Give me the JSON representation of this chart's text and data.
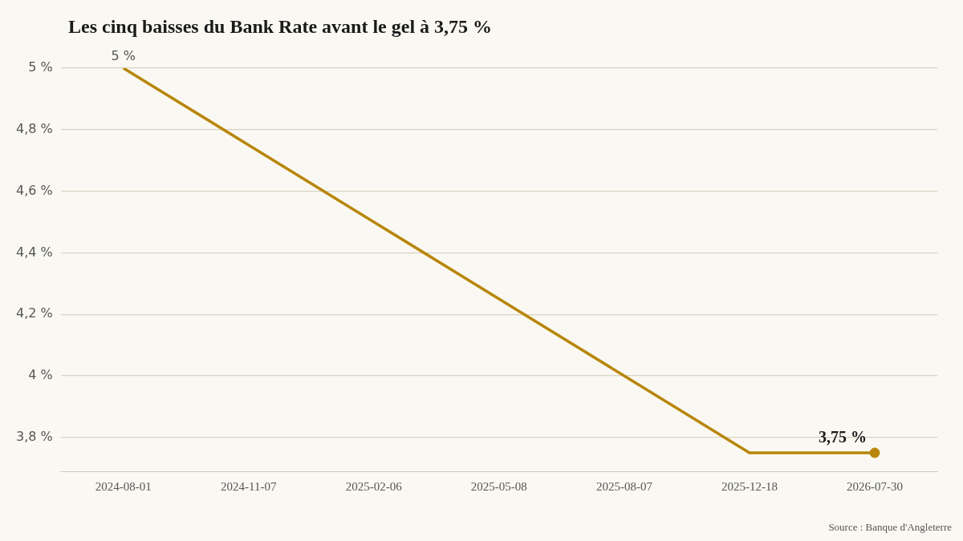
{
  "chart_data": {
    "type": "line",
    "title": "Les cinq baisses du Bank Rate avant le gel à 3,75 %",
    "categories": [
      "2024-08-01",
      "2024-11-07",
      "2025-02-06",
      "2025-05-08",
      "2025-08-07",
      "2025-12-18",
      "2026-07-30"
    ],
    "series": [
      {
        "color": "#b8860b",
        "values": [
          5,
          4.75,
          4.5,
          4.25,
          4,
          3.75,
          3.75
        ],
        "value_labels": [
          "5 %",
          null,
          null,
          null,
          null,
          null,
          "3,75 %"
        ]
      },
      {
        "type": "scatter",
        "color": "#b8860b",
        "marker": "circle",
        "values": [
          null,
          null,
          null,
          null,
          null,
          null,
          3.75
        ]
      }
    ],
    "ylim": [
      3.69,
      5
    ],
    "yticks": [
      {
        "value": 3.8,
        "label": "3,8 %"
      },
      {
        "value": 4,
        "label": "4 %"
      },
      {
        "value": 4.2,
        "label": "4,2 %"
      },
      {
        "value": 4.4,
        "label": "4,4 %"
      },
      {
        "value": 4.6,
        "label": "4,6 %"
      },
      {
        "value": 4.8,
        "label": "4,8 %"
      },
      {
        "value": 5,
        "label": "5 %"
      }
    ],
    "grid": "y",
    "legend": false,
    "annotations": [
      "Source : Banque d'Angleterre"
    ]
  }
}
